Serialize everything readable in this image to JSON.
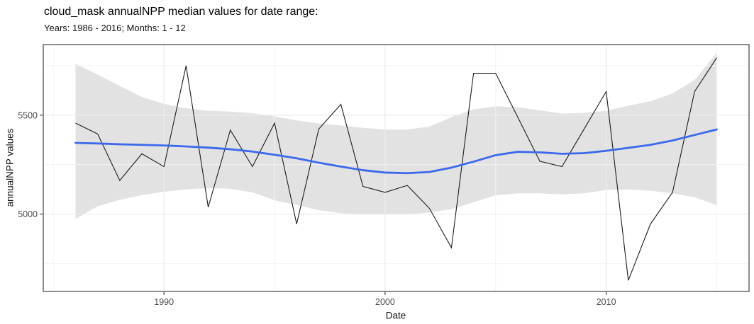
{
  "header": {
    "title": "cloud_mask annualNPP median values for date range:",
    "subtitle": "Years: 1986 - 2016; Months: 1 - 12"
  },
  "chart_data": {
    "type": "line",
    "title": "cloud_mask annualNPP median values for date range:",
    "subtitle": "Years: 1986 - 2016; Months: 1 - 12",
    "xlabel": "Date",
    "ylabel": "annualNPP values",
    "grid": true,
    "legend": "none",
    "xlim": [
      1984.54,
      2016.46
    ],
    "ylim": [
      4609,
      5857
    ],
    "x_ticks": [
      1990,
      2000,
      2010
    ],
    "x_minor_ticks": [
      1985,
      1995,
      2005,
      2015
    ],
    "y_ticks": [
      5000,
      5500
    ],
    "y_minor_ticks": [
      4750,
      5250,
      5750
    ],
    "x": [
      1986,
      1987,
      1988,
      1989,
      1990,
      1991,
      1992,
      1993,
      1994,
      1995,
      1996,
      1997,
      1998,
      1999,
      2000,
      2001,
      2002,
      2003,
      2004,
      2005,
      2006,
      2007,
      2008,
      2009,
      2010,
      2011,
      2012,
      2013,
      2014,
      2015
    ],
    "series": [
      {
        "name": "annualNPP median",
        "role": "data-line",
        "values": [
          5460,
          5405,
          5170,
          5305,
          5240,
          5750,
          5035,
          5425,
          5240,
          5460,
          4950,
          5430,
          5555,
          5140,
          5110,
          5145,
          5030,
          4830,
          5712,
          5712,
          5490,
          5267,
          5240,
          5430,
          5620,
          4665,
          4950,
          5110,
          5620,
          5790
        ]
      },
      {
        "name": "loess trend",
        "role": "trend-line",
        "values": [
          5360,
          5357,
          5353,
          5350,
          5347,
          5342,
          5336,
          5328,
          5316,
          5300,
          5282,
          5260,
          5240,
          5222,
          5210,
          5207,
          5213,
          5235,
          5265,
          5298,
          5315,
          5312,
          5305,
          5308,
          5320,
          5335,
          5350,
          5372,
          5400,
          5428
        ]
      }
    ],
    "ribbon": {
      "name": "confidence band",
      "upper": [
        5760,
        5705,
        5648,
        5592,
        5557,
        5535,
        5522,
        5518,
        5510,
        5494,
        5474,
        5458,
        5448,
        5436,
        5428,
        5428,
        5442,
        5490,
        5530,
        5545,
        5540,
        5525,
        5508,
        5512,
        5522,
        5548,
        5570,
        5610,
        5678,
        5815
      ],
      "lower": [
        4975,
        5040,
        5072,
        5096,
        5113,
        5125,
        5131,
        5128,
        5110,
        5070,
        5046,
        5020,
        5005,
        4998,
        4997,
        5000,
        5008,
        5025,
        5060,
        5095,
        5105,
        5105,
        5100,
        5105,
        5122,
        5125,
        5118,
        5105,
        5085,
        5045
      ]
    },
    "colors": {
      "data_line": "#1b1b1b",
      "trend_line": "#3c69eb",
      "ribbon": "#e2e2e2",
      "grid_major": "#ececec",
      "grid_minor": "#f4f4f4",
      "panel_border": "#3f3f3f",
      "tick_mark": "#333333",
      "tick_text": "#4d4d4d"
    }
  }
}
